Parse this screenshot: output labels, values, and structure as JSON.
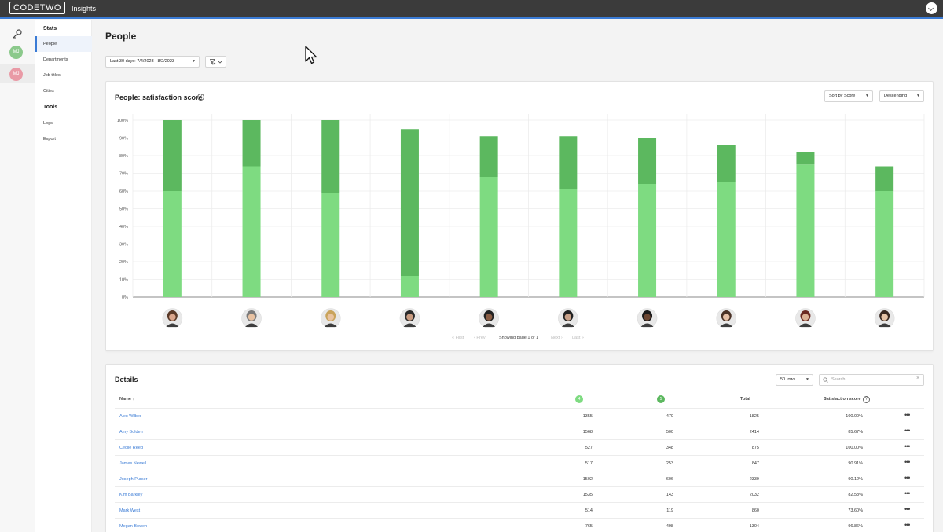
{
  "app": {
    "logo": "CODETWO",
    "title": "Insights",
    "rail_avatars": [
      {
        "initials": "MJ",
        "color": "#8bc98b"
      },
      {
        "initials": "MJ",
        "color": "#e99aa6"
      }
    ]
  },
  "nav": {
    "stats_label": "Stats",
    "items": [
      "People",
      "Departments",
      "Job titles",
      "Cities"
    ],
    "tools_label": "Tools",
    "tool_items": [
      "Logs",
      "Export"
    ]
  },
  "page": {
    "title": "People",
    "date_range": "Last 30 days: 7/4/2023 - 8/2/2023"
  },
  "chart_card": {
    "title": "People: satisfaction score",
    "sort_by": "Sort by Score",
    "order": "Descending",
    "pager": {
      "first": "First",
      "prev": "Prev",
      "info": "Showing page 1 of 1",
      "next": "Next",
      "last": "Last"
    }
  },
  "chart_data": {
    "type": "bar",
    "stacked": true,
    "y_tick_labels": [
      "0%",
      "10%",
      "20%",
      "30%",
      "40%",
      "50%",
      "60%",
      "70%",
      "80%",
      "90%",
      "100%"
    ],
    "ylim": [
      0,
      100
    ],
    "grid": true,
    "series": [
      {
        "color": "#7edb81",
        "values": [
          60,
          74,
          59,
          12,
          68,
          61,
          64,
          65,
          75,
          60
        ]
      },
      {
        "color": "#5cb85f",
        "values": [
          40,
          26,
          41,
          83,
          23,
          30,
          26,
          21,
          7,
          14
        ]
      }
    ]
  },
  "details": {
    "title": "Details",
    "rows_select": "50 rows",
    "search_placeholder": "Search",
    "headers": {
      "name": "Name",
      "col4": "4",
      "col5": "5",
      "total": "Total",
      "score": "Satisfaction score"
    },
    "rows": [
      {
        "name": "Alex Wilber",
        "c4": "1355",
        "c5": "470",
        "total": "1825",
        "score": "100.00%"
      },
      {
        "name": "Amy Bolden",
        "c4": "1568",
        "c5": "500",
        "total": "2414",
        "score": "85.67%"
      },
      {
        "name": "Cecile Reed",
        "c4": "527",
        "c5": "348",
        "total": "875",
        "score": "100.00%"
      },
      {
        "name": "James Newell",
        "c4": "517",
        "c5": "253",
        "total": "847",
        "score": "90.91%"
      },
      {
        "name": "Joseph Purser",
        "c4": "1502",
        "c5": "606",
        "total": "2339",
        "score": "90.12%"
      },
      {
        "name": "Kim Barkley",
        "c4": "1535",
        "c5": "143",
        "total": "2032",
        "score": "82.58%"
      },
      {
        "name": "Mark West",
        "c4": "514",
        "c5": "119",
        "total": "860",
        "score": "73.60%"
      },
      {
        "name": "Megan Bowen",
        "c4": "765",
        "c5": "498",
        "total": "1304",
        "score": "96.86%"
      }
    ]
  }
}
